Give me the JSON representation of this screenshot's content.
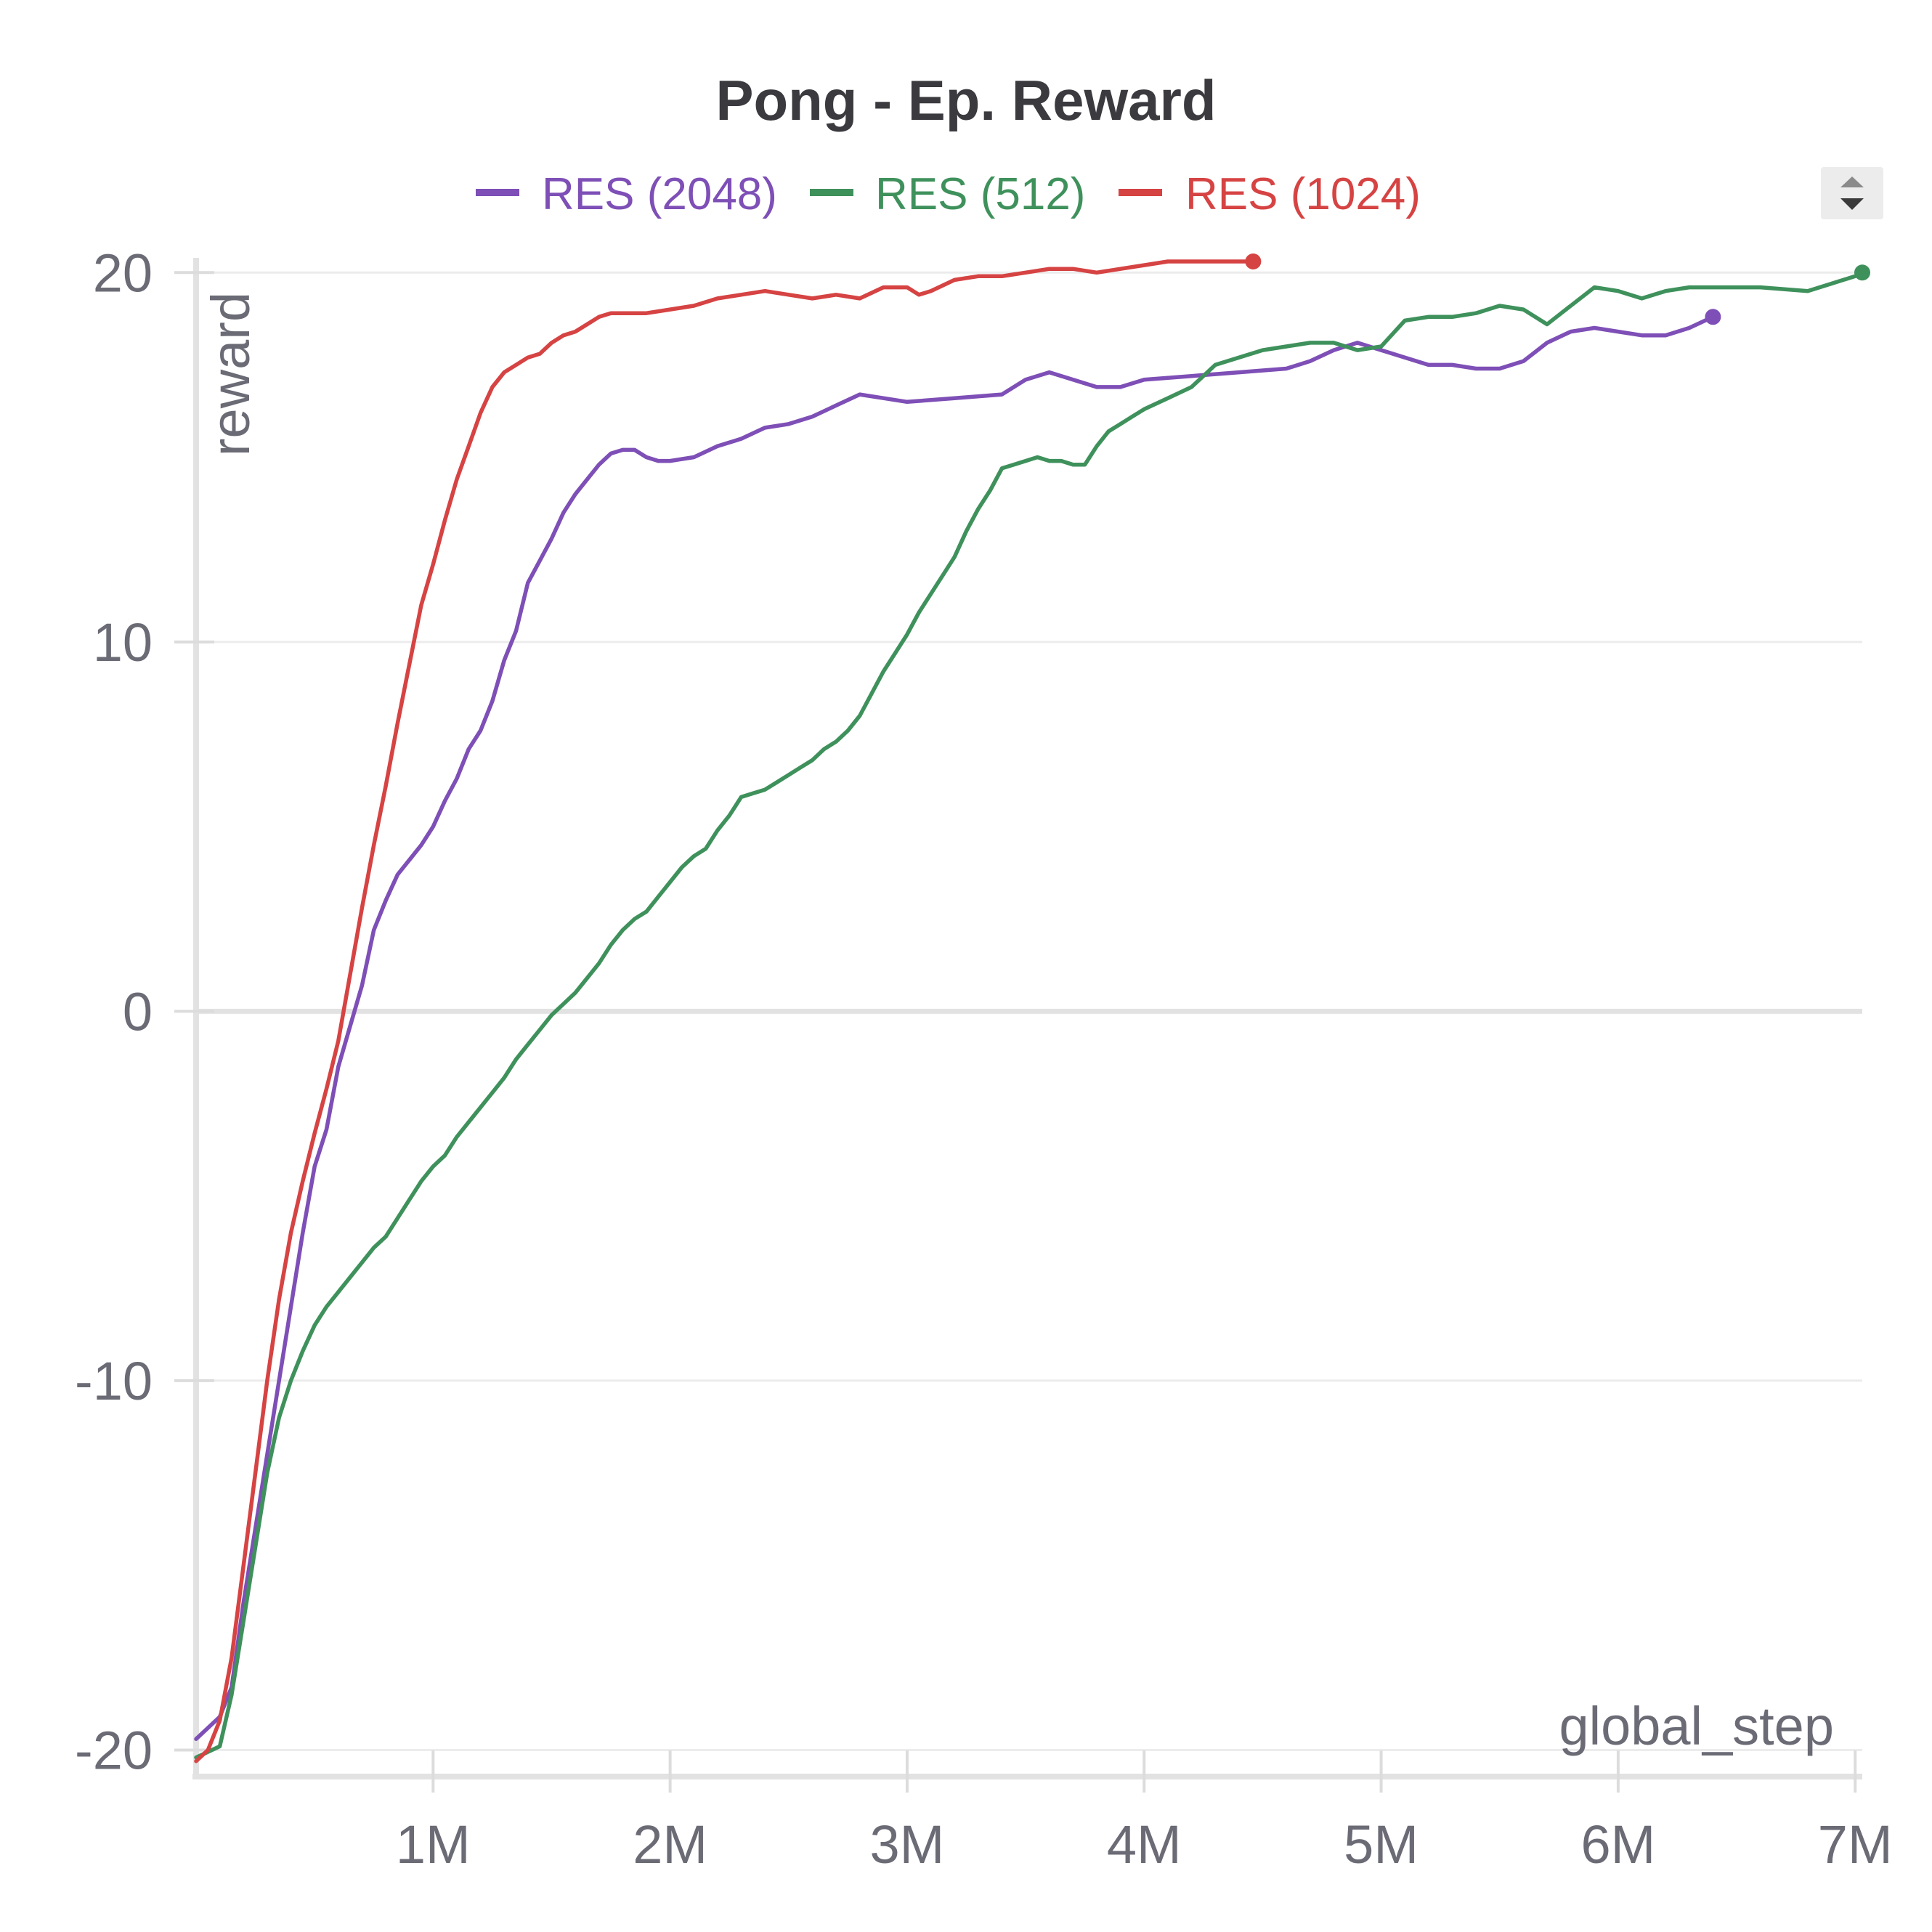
{
  "chart_data": {
    "type": "line",
    "title": "Pong - Ep. Reward",
    "xlabel": "global_step",
    "ylabel": "reward",
    "x_ticks": [
      {
        "value": 1000000,
        "label": "1M"
      },
      {
        "value": 2000000,
        "label": "2M"
      },
      {
        "value": 3000000,
        "label": "3M"
      },
      {
        "value": 4000000,
        "label": "4M"
      },
      {
        "value": 5000000,
        "label": "5M"
      },
      {
        "value": 6000000,
        "label": "6M"
      },
      {
        "value": 7000000,
        "label": "7M"
      }
    ],
    "y_ticks": [
      {
        "value": 20,
        "label": "20"
      },
      {
        "value": 10,
        "label": "10"
      },
      {
        "value": 0,
        "label": "0"
      },
      {
        "value": -10,
        "label": "-10"
      },
      {
        "value": -20,
        "label": "-20"
      }
    ],
    "xlim": [
      0,
      7030000
    ],
    "ylim": [
      -20.6,
      20.3
    ],
    "grid": true,
    "legend_position": "top-center",
    "series": [
      {
        "name": "RES (2048)",
        "color": "#7e4fb6",
        "points": [
          [
            0,
            -19.7
          ],
          [
            100000,
            -19.1
          ],
          [
            150000,
            -18.3
          ],
          [
            200000,
            -16.0
          ],
          [
            250000,
            -14.0
          ],
          [
            300000,
            -12.0
          ],
          [
            350000,
            -10.0
          ],
          [
            400000,
            -8.0
          ],
          [
            450000,
            -6.0
          ],
          [
            500000,
            -4.2
          ],
          [
            550000,
            -3.2
          ],
          [
            600000,
            -1.5
          ],
          [
            650000,
            -0.4
          ],
          [
            700000,
            0.7
          ],
          [
            750000,
            2.2
          ],
          [
            800000,
            3.0
          ],
          [
            850000,
            3.7
          ],
          [
            900000,
            4.1
          ],
          [
            950000,
            4.5
          ],
          [
            1000000,
            5.0
          ],
          [
            1050000,
            5.7
          ],
          [
            1100000,
            6.3
          ],
          [
            1150000,
            7.1
          ],
          [
            1200000,
            7.6
          ],
          [
            1250000,
            8.4
          ],
          [
            1300000,
            9.5
          ],
          [
            1350000,
            10.3
          ],
          [
            1400000,
            11.6
          ],
          [
            1450000,
            12.2
          ],
          [
            1500000,
            12.8
          ],
          [
            1550000,
            13.5
          ],
          [
            1600000,
            14.0
          ],
          [
            1650000,
            14.4
          ],
          [
            1700000,
            14.8
          ],
          [
            1750000,
            15.1
          ],
          [
            1800000,
            15.2
          ],
          [
            1850000,
            15.2
          ],
          [
            1900000,
            15.0
          ],
          [
            1950000,
            14.9
          ],
          [
            2000000,
            14.9
          ],
          [
            2100000,
            15.0
          ],
          [
            2200000,
            15.3
          ],
          [
            2300000,
            15.5
          ],
          [
            2400000,
            15.8
          ],
          [
            2500000,
            15.9
          ],
          [
            2600000,
            16.1
          ],
          [
            2700000,
            16.4
          ],
          [
            2800000,
            16.7
          ],
          [
            2900000,
            16.6
          ],
          [
            3000000,
            16.5
          ],
          [
            3200000,
            16.6
          ],
          [
            3400000,
            16.7
          ],
          [
            3500000,
            17.1
          ],
          [
            3600000,
            17.3
          ],
          [
            3700000,
            17.1
          ],
          [
            3800000,
            16.9
          ],
          [
            3900000,
            16.9
          ],
          [
            4000000,
            17.1
          ],
          [
            4200000,
            17.2
          ],
          [
            4400000,
            17.3
          ],
          [
            4600000,
            17.4
          ],
          [
            4700000,
            17.6
          ],
          [
            4800000,
            17.9
          ],
          [
            4900000,
            18.1
          ],
          [
            5000000,
            17.9
          ],
          [
            5100000,
            17.7
          ],
          [
            5200000,
            17.5
          ],
          [
            5300000,
            17.5
          ],
          [
            5400000,
            17.4
          ],
          [
            5500000,
            17.4
          ],
          [
            5600000,
            17.6
          ],
          [
            5700000,
            18.1
          ],
          [
            5800000,
            18.4
          ],
          [
            5900000,
            18.5
          ],
          [
            6000000,
            18.4
          ],
          [
            6100000,
            18.3
          ],
          [
            6200000,
            18.3
          ],
          [
            6300000,
            18.5
          ],
          [
            6400000,
            18.8
          ]
        ]
      },
      {
        "name": "RES (512)",
        "color": "#3f915c",
        "points": [
          [
            0,
            -20.2
          ],
          [
            100000,
            -19.9
          ],
          [
            150000,
            -18.5
          ],
          [
            200000,
            -16.5
          ],
          [
            250000,
            -14.5
          ],
          [
            300000,
            -12.5
          ],
          [
            350000,
            -11.0
          ],
          [
            400000,
            -10.0
          ],
          [
            450000,
            -9.2
          ],
          [
            500000,
            -8.5
          ],
          [
            550000,
            -8.0
          ],
          [
            600000,
            -7.6
          ],
          [
            650000,
            -7.2
          ],
          [
            700000,
            -6.8
          ],
          [
            750000,
            -6.4
          ],
          [
            800000,
            -6.1
          ],
          [
            850000,
            -5.6
          ],
          [
            900000,
            -5.1
          ],
          [
            950000,
            -4.6
          ],
          [
            1000000,
            -4.2
          ],
          [
            1050000,
            -3.9
          ],
          [
            1100000,
            -3.4
          ],
          [
            1150000,
            -3.0
          ],
          [
            1200000,
            -2.6
          ],
          [
            1250000,
            -2.2
          ],
          [
            1300000,
            -1.8
          ],
          [
            1350000,
            -1.3
          ],
          [
            1400000,
            -0.9
          ],
          [
            1450000,
            -0.5
          ],
          [
            1500000,
            -0.1
          ],
          [
            1550000,
            0.2
          ],
          [
            1600000,
            0.5
          ],
          [
            1650000,
            0.9
          ],
          [
            1700000,
            1.3
          ],
          [
            1750000,
            1.8
          ],
          [
            1800000,
            2.2
          ],
          [
            1850000,
            2.5
          ],
          [
            1900000,
            2.7
          ],
          [
            1950000,
            3.1
          ],
          [
            2000000,
            3.5
          ],
          [
            2050000,
            3.9
          ],
          [
            2100000,
            4.2
          ],
          [
            2150000,
            4.4
          ],
          [
            2200000,
            4.9
          ],
          [
            2250000,
            5.3
          ],
          [
            2300000,
            5.8
          ],
          [
            2350000,
            5.9
          ],
          [
            2400000,
            6.0
          ],
          [
            2450000,
            6.2
          ],
          [
            2500000,
            6.4
          ],
          [
            2550000,
            6.6
          ],
          [
            2600000,
            6.8
          ],
          [
            2650000,
            7.1
          ],
          [
            2700000,
            7.3
          ],
          [
            2750000,
            7.6
          ],
          [
            2800000,
            8.0
          ],
          [
            2850000,
            8.6
          ],
          [
            2900000,
            9.2
          ],
          [
            2950000,
            9.7
          ],
          [
            3000000,
            10.2
          ],
          [
            3050000,
            10.8
          ],
          [
            3100000,
            11.3
          ],
          [
            3150000,
            11.8
          ],
          [
            3200000,
            12.3
          ],
          [
            3250000,
            13.0
          ],
          [
            3300000,
            13.6
          ],
          [
            3350000,
            14.1
          ],
          [
            3400000,
            14.7
          ],
          [
            3450000,
            14.8
          ],
          [
            3500000,
            14.9
          ],
          [
            3550000,
            15.0
          ],
          [
            3600000,
            14.9
          ],
          [
            3650000,
            14.9
          ],
          [
            3700000,
            14.8
          ],
          [
            3750000,
            14.8
          ],
          [
            3800000,
            15.3
          ],
          [
            3850000,
            15.7
          ],
          [
            3900000,
            15.9
          ],
          [
            3950000,
            16.1
          ],
          [
            4000000,
            16.3
          ],
          [
            4100000,
            16.6
          ],
          [
            4200000,
            16.9
          ],
          [
            4300000,
            17.5
          ],
          [
            4400000,
            17.7
          ],
          [
            4500000,
            17.9
          ],
          [
            4600000,
            18.0
          ],
          [
            4700000,
            18.1
          ],
          [
            4800000,
            18.1
          ],
          [
            4900000,
            17.9
          ],
          [
            5000000,
            18.0
          ],
          [
            5100000,
            18.7
          ],
          [
            5200000,
            18.8
          ],
          [
            5300000,
            18.8
          ],
          [
            5400000,
            18.9
          ],
          [
            5500000,
            19.1
          ],
          [
            5600000,
            19.0
          ],
          [
            5700000,
            18.6
          ],
          [
            5800000,
            19.1
          ],
          [
            5900000,
            19.6
          ],
          [
            6000000,
            19.5
          ],
          [
            6100000,
            19.3
          ],
          [
            6200000,
            19.5
          ],
          [
            6300000,
            19.6
          ],
          [
            6400000,
            19.6
          ],
          [
            6600000,
            19.6
          ],
          [
            6800000,
            19.5
          ],
          [
            6900000,
            19.7
          ],
          [
            7000000,
            19.9
          ],
          [
            7030000,
            20.0
          ]
        ]
      },
      {
        "name": "RES (1024)",
        "color": "#d64343",
        "points": [
          [
            0,
            -20.3
          ],
          [
            50000,
            -20.0
          ],
          [
            100000,
            -19.2
          ],
          [
            150000,
            -17.5
          ],
          [
            200000,
            -15.0
          ],
          [
            250000,
            -12.5
          ],
          [
            300000,
            -10.0
          ],
          [
            350000,
            -7.8
          ],
          [
            400000,
            -6.0
          ],
          [
            450000,
            -4.6
          ],
          [
            500000,
            -3.3
          ],
          [
            550000,
            -2.1
          ],
          [
            600000,
            -0.8
          ],
          [
            650000,
            1.0
          ],
          [
            700000,
            2.8
          ],
          [
            750000,
            4.5
          ],
          [
            800000,
            6.1
          ],
          [
            850000,
            7.8
          ],
          [
            900000,
            9.4
          ],
          [
            950000,
            11.0
          ],
          [
            1000000,
            12.1
          ],
          [
            1050000,
            13.3
          ],
          [
            1100000,
            14.4
          ],
          [
            1150000,
            15.3
          ],
          [
            1200000,
            16.2
          ],
          [
            1250000,
            16.9
          ],
          [
            1300000,
            17.3
          ],
          [
            1350000,
            17.5
          ],
          [
            1400000,
            17.7
          ],
          [
            1450000,
            17.8
          ],
          [
            1500000,
            18.1
          ],
          [
            1550000,
            18.3
          ],
          [
            1600000,
            18.4
          ],
          [
            1650000,
            18.6
          ],
          [
            1700000,
            18.8
          ],
          [
            1750000,
            18.9
          ],
          [
            1800000,
            18.9
          ],
          [
            1850000,
            18.9
          ],
          [
            1900000,
            18.9
          ],
          [
            2000000,
            19.0
          ],
          [
            2100000,
            19.1
          ],
          [
            2200000,
            19.3
          ],
          [
            2300000,
            19.4
          ],
          [
            2400000,
            19.5
          ],
          [
            2500000,
            19.4
          ],
          [
            2600000,
            19.3
          ],
          [
            2700000,
            19.4
          ],
          [
            2800000,
            19.3
          ],
          [
            2900000,
            19.6
          ],
          [
            3000000,
            19.6
          ],
          [
            3050000,
            19.4
          ],
          [
            3100000,
            19.5
          ],
          [
            3200000,
            19.8
          ],
          [
            3300000,
            19.9
          ],
          [
            3400000,
            19.9
          ],
          [
            3500000,
            20.0
          ],
          [
            3600000,
            20.1
          ],
          [
            3700000,
            20.1
          ],
          [
            3800000,
            20.0
          ],
          [
            3900000,
            20.1
          ],
          [
            4000000,
            20.2
          ],
          [
            4100000,
            20.3
          ],
          [
            4200000,
            20.3
          ],
          [
            4300000,
            20.3
          ],
          [
            4400000,
            20.3
          ],
          [
            4460000,
            20.3
          ]
        ]
      }
    ]
  }
}
